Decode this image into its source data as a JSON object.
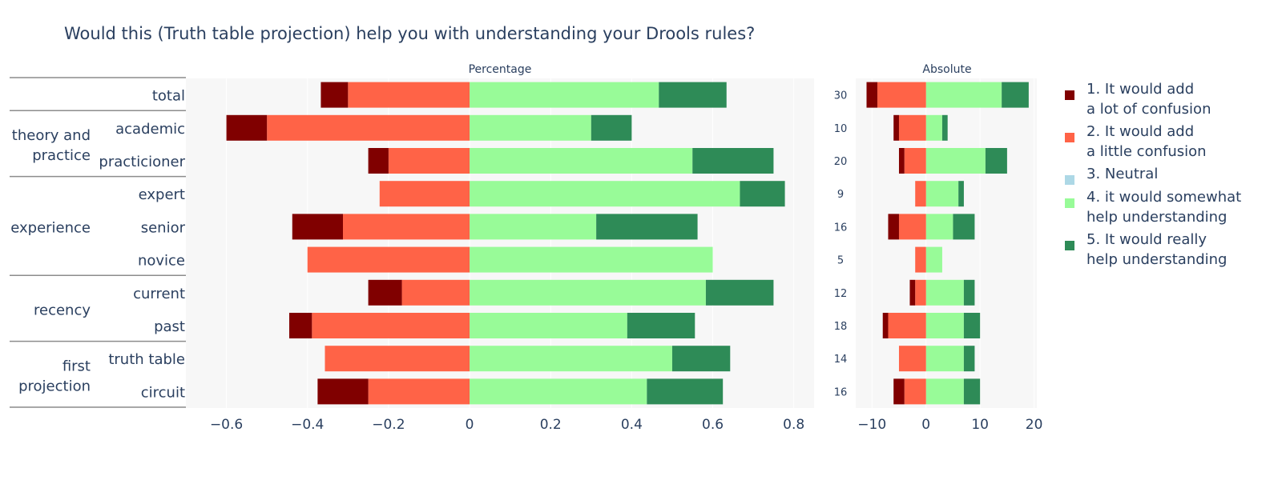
{
  "title": "Would this (Truth table projection) help you with understanding your Drools rules?",
  "chart_data": [
    {
      "type": "bar",
      "orientation": "horizontal",
      "stacked": "diverging",
      "title": "Percentage",
      "categories": [
        "total",
        "academic",
        "practicioner",
        "expert",
        "senior",
        "novice",
        "current",
        "past",
        "truth table",
        "circuit"
      ],
      "groups": [
        {
          "label": "",
          "categories": [
            "total"
          ]
        },
        {
          "label": "theory and\npractice",
          "categories": [
            "academic",
            "practicioner"
          ]
        },
        {
          "label": "experience",
          "categories": [
            "expert",
            "senior",
            "novice"
          ]
        },
        {
          "label": "recency",
          "categories": [
            "current",
            "past"
          ]
        },
        {
          "label": "first\nprojection",
          "categories": [
            "truth table",
            "circuit"
          ]
        }
      ],
      "series": [
        {
          "name": "1. It would add a lot of confusion",
          "color": "#800000",
          "values": [
            -0.067,
            -0.1,
            -0.05,
            0,
            -0.125,
            0,
            -0.083,
            -0.056,
            0,
            -0.125
          ]
        },
        {
          "name": "2. It would add a little confusion",
          "color": "#ff6347",
          "values": [
            -0.3,
            -0.5,
            -0.2,
            -0.222,
            -0.3125,
            -0.4,
            -0.167,
            -0.389,
            -0.357,
            -0.25
          ]
        },
        {
          "name": "3. Neutral",
          "color": "#add8e6",
          "values": [
            0,
            0,
            0,
            0,
            0,
            0,
            0,
            0,
            0,
            0
          ]
        },
        {
          "name": "4. it would somewhat help understanding",
          "color": "#98fb98",
          "values": [
            0.467,
            0.3,
            0.55,
            0.667,
            0.3125,
            0.6,
            0.583,
            0.389,
            0.5,
            0.4375
          ]
        },
        {
          "name": "5. It would really help understanding",
          "color": "#2e8b57",
          "values": [
            0.167,
            0.1,
            0.2,
            0.111,
            0.25,
            0,
            0.167,
            0.167,
            0.143,
            0.1875
          ]
        }
      ],
      "xlim": [
        -0.7,
        0.85
      ],
      "xticks": [
        "−0.6",
        "−0.4",
        "−0.2",
        "0",
        "0.2",
        "0.4",
        "0.6",
        "0.8"
      ]
    },
    {
      "type": "bar",
      "orientation": "horizontal",
      "stacked": "diverging",
      "title": "Absolute",
      "categories": [
        "total",
        "academic",
        "practicioner",
        "expert",
        "senior",
        "novice",
        "current",
        "past",
        "truth table",
        "circuit"
      ],
      "n_labels": [
        "30",
        "10",
        "20",
        "9",
        "16",
        "5",
        "12",
        "18",
        "14",
        "16"
      ],
      "series": [
        {
          "name": "1. It would add a lot of confusion",
          "color": "#800000",
          "values": [
            -2,
            -1,
            -1,
            0,
            -2,
            0,
            -1,
            -1,
            0,
            -2
          ]
        },
        {
          "name": "2. It would add a little confusion",
          "color": "#ff6347",
          "values": [
            -9,
            -5,
            -4,
            -2,
            -5,
            -2,
            -2,
            -7,
            -5,
            -4
          ]
        },
        {
          "name": "3. Neutral",
          "color": "#add8e6",
          "values": [
            0,
            0,
            0,
            0,
            0,
            0,
            0,
            0,
            0,
            0
          ]
        },
        {
          "name": "4. it would somewhat help understanding",
          "color": "#98fb98",
          "values": [
            14,
            3,
            11,
            6,
            5,
            3,
            7,
            7,
            7,
            7
          ]
        },
        {
          "name": "5. It would really help understanding",
          "color": "#2e8b57",
          "values": [
            5,
            1,
            4,
            1,
            4,
            0,
            2,
            3,
            2,
            3
          ]
        }
      ],
      "xlim": [
        -13,
        20.5
      ],
      "xticks": [
        "−10",
        "0",
        "10",
        "20"
      ]
    }
  ],
  "legend": {
    "placement": "right",
    "items": [
      {
        "lines": [
          "1. It would add",
          "a lot of confusion"
        ],
        "color": "#800000"
      },
      {
        "lines": [
          "2. It would add",
          "a little confusion"
        ],
        "color": "#ff6347"
      },
      {
        "lines": [
          "3. Neutral"
        ],
        "color": "#add8e6"
      },
      {
        "lines": [
          "4. it would somewhat",
          "help understanding"
        ],
        "color": "#98fb98"
      },
      {
        "lines": [
          "5. It would really",
          "help understanding"
        ],
        "color": "#2e8b57"
      }
    ]
  }
}
